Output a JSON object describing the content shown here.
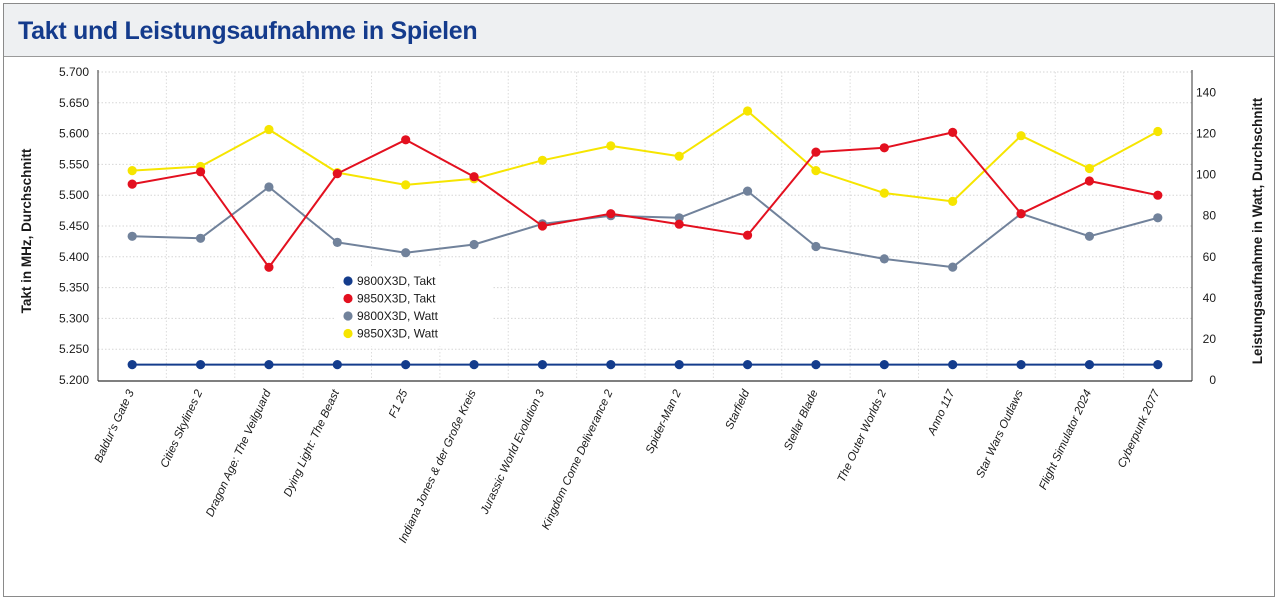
{
  "title": "Takt und Leistungsaufnahme in Spielen",
  "chart_data": {
    "type": "line",
    "title": "Takt und Leistungsaufnahme in Spielen",
    "ylabel": "Takt in MHz, Durchschnitt",
    "y2label": "Leistungsaufnahme in Watt, Durchschnitt",
    "ylim": [
      5200,
      5700
    ],
    "y2lim": [
      0,
      150
    ],
    "yticks": [
      "5.200",
      "5.250",
      "5.300",
      "5.350",
      "5.400",
      "5.450",
      "5.500",
      "5.550",
      "5.600",
      "5.650",
      "5.700"
    ],
    "y2ticks": [
      "0",
      "20",
      "40",
      "60",
      "80",
      "100",
      "120",
      "140"
    ],
    "grid": true,
    "legend_position": "center-left",
    "categories": [
      "Baldur's Gate 3",
      "Cities Skylines 2",
      "Dragon Age: The Veilguard",
      "Dying Light: The Beast",
      "F1 25",
      "Indiana Jones & der Große Kreis",
      "Jurassic World Evolution 3",
      "Kingdom Come Deliverance 2",
      "Spider-Man 2",
      "Starfield",
      "Stellar Blade",
      "The Outer Worlds 2",
      "Anno 117",
      "Star Wars Outlaws",
      "Flight Simulator 2024",
      "Cyberpunk 2077"
    ],
    "series": [
      {
        "name": "9800X3D, Takt",
        "axis": "left",
        "color": "#143c8c",
        "values": [
          5225,
          5225,
          5225,
          5225,
          5225,
          5225,
          5225,
          5225,
          5225,
          5225,
          5225,
          5225,
          5225,
          5225,
          5225,
          5225
        ]
      },
      {
        "name": "9850X3D, Takt",
        "axis": "left",
        "color": "#e3101f",
        "values": [
          5518,
          5538,
          5383,
          5535,
          5590,
          5530,
          5450,
          5470,
          5453,
          5435,
          5570,
          5577,
          5602,
          5470,
          5523,
          5500
        ]
      },
      {
        "name": "9800X3D, Watt",
        "axis": "right",
        "color": "#71829b",
        "values": [
          70,
          69,
          94,
          67,
          62,
          66,
          76,
          80,
          79,
          92,
          65,
          59,
          55,
          81,
          70,
          79
        ]
      },
      {
        "name": "9850X3D, Watt",
        "axis": "right",
        "color": "#f6e500",
        "values": [
          102,
          104,
          122,
          101,
          95,
          98,
          107,
          114,
          109,
          131,
          102,
          91,
          87,
          119,
          103,
          121
        ]
      }
    ]
  }
}
